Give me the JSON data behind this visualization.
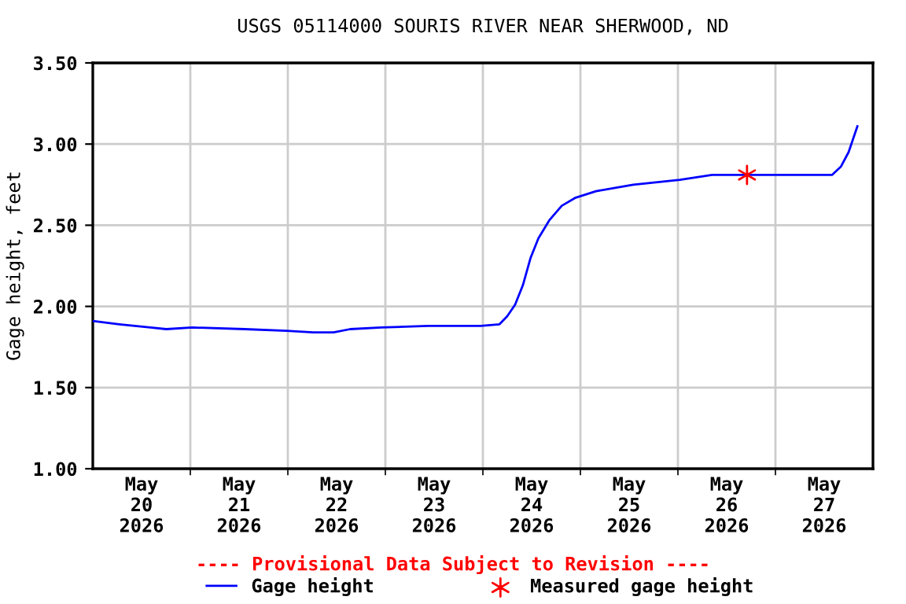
{
  "chart_data": {
    "type": "line",
    "title": "USGS 05114000 SOURIS RIVER NEAR SHERWOOD, ND",
    "ylabel": "Gage height, feet",
    "annotations": [
      "---- Provisional Data Subject to Revision ----"
    ],
    "series": [
      {
        "name": "Gage height",
        "color": "#0000ff",
        "marker": "none",
        "x": [
          "2026-05-20T00:00",
          "2026-05-20T06:30",
          "2026-05-20T14:10",
          "2026-05-20T18:05",
          "2026-05-21T00:30",
          "2026-05-21T13:25",
          "2026-05-21T23:45",
          "2026-05-22T06:15",
          "2026-05-22T11:15",
          "2026-05-22T15:20",
          "2026-05-22T23:00",
          "2026-05-23T10:35",
          "2026-05-23T23:30",
          "2026-05-24T04:05",
          "2026-05-24T06:00",
          "2026-05-24T07:55",
          "2026-05-24T09:50",
          "2026-05-24T11:45",
          "2026-05-24T13:40",
          "2026-05-24T16:20",
          "2026-05-24T19:25",
          "2026-05-24T22:50",
          "2026-05-25T03:50",
          "2026-05-25T13:00",
          "2026-05-26T00:30",
          "2026-05-26T08:25",
          "2026-05-26T16:05",
          "2026-05-27T01:10",
          "2026-05-27T13:55",
          "2026-05-27T16:05",
          "2026-05-27T18:00",
          "2026-05-27T20:10"
        ],
        "values": [
          1.91,
          1.89,
          1.87,
          1.86,
          1.87,
          1.86,
          1.85,
          1.84,
          1.84,
          1.86,
          1.87,
          1.88,
          1.88,
          1.89,
          1.94,
          2.01,
          2.13,
          2.3,
          2.42,
          2.53,
          2.62,
          2.67,
          2.71,
          2.75,
          2.78,
          2.81,
          2.81,
          2.81,
          2.81,
          2.86,
          2.95,
          3.11
        ]
      },
      {
        "name": "Measured gage height",
        "color": "#ff0000",
        "type": "scatter",
        "marker": "cross",
        "x": [
          "2026-05-26T17:00"
        ],
        "values": [
          2.81
        ]
      }
    ],
    "xlim": [
      "2026-05-20T00:00",
      "2026-05-28T00:00"
    ],
    "xticks": [
      {
        "value": "2026-05-20T12:00",
        "label": "May\n20\n2026"
      },
      {
        "value": "2026-05-21T12:00",
        "label": "May\n21\n2026"
      },
      {
        "value": "2026-05-22T12:00",
        "label": "May\n22\n2026"
      },
      {
        "value": "2026-05-23T12:00",
        "label": "May\n23\n2026"
      },
      {
        "value": "2026-05-24T12:00",
        "label": "May\n24\n2026"
      },
      {
        "value": "2026-05-25T12:00",
        "label": "May\n25\n2026"
      },
      {
        "value": "2026-05-26T12:00",
        "label": "May\n26\n2026"
      },
      {
        "value": "2026-05-27T12:00",
        "label": "May\n27\n2026"
      },
      {
        "value": "2026-05-21T00:00",
        "label": null
      },
      {
        "value": "2026-05-22T00:00",
        "label": null
      },
      {
        "value": "2026-05-23T00:00",
        "label": null
      },
      {
        "value": "2026-05-24T00:00",
        "label": null
      },
      {
        "value": "2026-05-25T00:00",
        "label": null
      },
      {
        "value": "2026-05-26T00:00",
        "label": null
      },
      {
        "value": "2026-05-27T00:00",
        "label": null
      }
    ],
    "ylim": [
      1.0,
      3.5
    ],
    "yticks": [
      {
        "value": 1.0,
        "label": "1.00"
      },
      {
        "value": 1.5,
        "label": "1.50"
      },
      {
        "value": 2.0,
        "label": "2.00"
      },
      {
        "value": 2.5,
        "label": "2.50"
      },
      {
        "value": 3.0,
        "label": "3.00"
      },
      {
        "value": 3.5,
        "label": "3.50"
      }
    ],
    "grid": true,
    "legend": "bottom"
  }
}
